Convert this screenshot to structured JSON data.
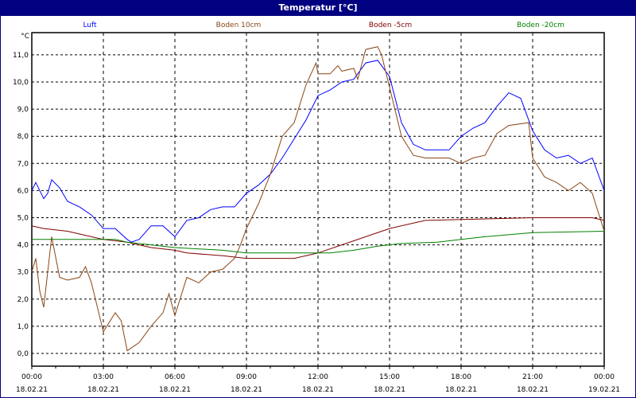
{
  "chart_data": {
    "type": "line",
    "title": "Temperatur [°C]",
    "ylabel": "°C",
    "ylim": [
      -0.7,
      11.6
    ],
    "yticks": [
      "0,0",
      "1,0",
      "2,0",
      "3,0",
      "4,0",
      "5,0",
      "6,0",
      "7,0",
      "8,0",
      "9,0",
      "10,0",
      "11,0"
    ],
    "xlim": [
      "18.02.21 00:00",
      "19.02.21 00:00"
    ],
    "xticks": [
      {
        "time": "00:00",
        "date": "18.02.21"
      },
      {
        "time": "03:00",
        "date": "18.02.21"
      },
      {
        "time": "06:00",
        "date": "18.02.21"
      },
      {
        "time": "09:00",
        "date": "18.02.21"
      },
      {
        "time": "12:00",
        "date": "18.02.21"
      },
      {
        "time": "15:00",
        "date": "18.02.21"
      },
      {
        "time": "18:00",
        "date": "18.02.21"
      },
      {
        "time": "21:00",
        "date": "18.02.21"
      },
      {
        "time": "00:00",
        "date": "19.02.21"
      }
    ],
    "grid": true,
    "legend_position": "top",
    "series": [
      {
        "name": "Luft",
        "color": "#0000ff",
        "points": [
          [
            "18.02.21 00:00",
            6.0
          ],
          [
            "18.02.21 00:10",
            6.3
          ],
          [
            "18.02.21 00:30",
            5.7
          ],
          [
            "18.02.21 00:40",
            5.9
          ],
          [
            "18.02.21 00:50",
            6.4
          ],
          [
            "18.02.21 01:10",
            6.1
          ],
          [
            "18.02.21 01:30",
            5.6
          ],
          [
            "18.02.21 02:00",
            5.4
          ],
          [
            "18.02.21 02:30",
            5.1
          ],
          [
            "18.02.21 03:00",
            4.6
          ],
          [
            "18.02.21 03:30",
            4.6
          ],
          [
            "18.02.21 04:00",
            4.2
          ],
          [
            "18.02.21 04:10",
            4.1
          ],
          [
            "18.02.21 04:30",
            4.2
          ],
          [
            "18.02.21 05:00",
            4.7
          ],
          [
            "18.02.21 05:30",
            4.7
          ],
          [
            "18.02.21 06:00",
            4.3
          ],
          [
            "18.02.21 06:30",
            4.9
          ],
          [
            "18.02.21 07:00",
            5.0
          ],
          [
            "18.02.21 07:30",
            5.3
          ],
          [
            "18.02.21 08:00",
            5.4
          ],
          [
            "18.02.21 08:30",
            5.4
          ],
          [
            "18.02.21 09:00",
            5.9
          ],
          [
            "18.02.21 09:30",
            6.2
          ],
          [
            "18.02.21 10:00",
            6.6
          ],
          [
            "18.02.21 10:30",
            7.2
          ],
          [
            "18.02.21 11:00",
            7.9
          ],
          [
            "18.02.21 11:30",
            8.6
          ],
          [
            "18.02.21 12:00",
            9.5
          ],
          [
            "18.02.21 12:30",
            9.7
          ],
          [
            "18.02.21 13:00",
            10.0
          ],
          [
            "18.02.21 13:30",
            10.1
          ],
          [
            "18.02.21 14:00",
            10.7
          ],
          [
            "18.02.21 14:30",
            10.8
          ],
          [
            "18.02.21 15:00",
            10.2
          ],
          [
            "18.02.21 15:30",
            8.5
          ],
          [
            "18.02.21 16:00",
            7.7
          ],
          [
            "18.02.21 16:30",
            7.5
          ],
          [
            "18.02.21 17:00",
            7.5
          ],
          [
            "18.02.21 17:30",
            7.5
          ],
          [
            "18.02.21 18:00",
            8.0
          ],
          [
            "18.02.21 18:30",
            8.3
          ],
          [
            "18.02.21 19:00",
            8.5
          ],
          [
            "18.02.21 19:30",
            9.1
          ],
          [
            "18.02.21 20:00",
            9.6
          ],
          [
            "18.02.21 20:30",
            9.4
          ],
          [
            "18.02.21 21:00",
            8.2
          ],
          [
            "18.02.21 21:30",
            7.5
          ],
          [
            "18.02.21 22:00",
            7.2
          ],
          [
            "18.02.21 22:30",
            7.3
          ],
          [
            "18.02.21 23:00",
            7.0
          ],
          [
            "18.02.21 23:30",
            7.2
          ],
          [
            "19.02.21 00:00",
            6.0
          ]
        ]
      },
      {
        "name": "Boden 10cm",
        "color": "#8b4513",
        "points": [
          [
            "18.02.21 00:00",
            3.0
          ],
          [
            "18.02.21 00:10",
            3.5
          ],
          [
            "18.02.21 00:20",
            2.3
          ],
          [
            "18.02.21 00:30",
            1.7
          ],
          [
            "18.02.21 00:50",
            4.3
          ],
          [
            "18.02.21 01:10",
            2.8
          ],
          [
            "18.02.21 01:30",
            2.7
          ],
          [
            "18.02.21 02:00",
            2.8
          ],
          [
            "18.02.21 02:15",
            3.2
          ],
          [
            "18.02.21 02:30",
            2.6
          ],
          [
            "18.02.21 03:00",
            0.8
          ],
          [
            "18.02.21 03:30",
            1.5
          ],
          [
            "18.02.21 03:45",
            1.2
          ],
          [
            "18.02.21 04:00",
            0.1
          ],
          [
            "18.02.21 04:30",
            0.4
          ],
          [
            "18.02.21 05:00",
            1.0
          ],
          [
            "18.02.21 05:30",
            1.5
          ],
          [
            "18.02.21 05:45",
            2.2
          ],
          [
            "18.02.21 06:00",
            1.4
          ],
          [
            "18.02.21 06:30",
            2.8
          ],
          [
            "18.02.21 07:00",
            2.6
          ],
          [
            "18.02.21 07:30",
            3.0
          ],
          [
            "18.02.21 08:00",
            3.1
          ],
          [
            "18.02.21 08:30",
            3.5
          ],
          [
            "18.02.21 08:45",
            4.0
          ],
          [
            "18.02.21 09:00",
            4.6
          ],
          [
            "18.02.21 09:30",
            5.5
          ],
          [
            "18.02.21 10:00",
            6.6
          ],
          [
            "18.02.21 10:30",
            8.0
          ],
          [
            "18.02.21 11:00",
            8.5
          ],
          [
            "18.02.21 11:30",
            9.9
          ],
          [
            "18.02.21 11:55",
            10.7
          ],
          [
            "18.02.21 12:00",
            10.3
          ],
          [
            "18.02.21 12:30",
            10.3
          ],
          [
            "18.02.21 12:50",
            10.6
          ],
          [
            "18.02.21 13:00",
            10.4
          ],
          [
            "18.02.21 13:30",
            10.5
          ],
          [
            "18.02.21 13:40",
            10.1
          ],
          [
            "18.02.21 14:00",
            11.2
          ],
          [
            "18.02.21 14:30",
            11.3
          ],
          [
            "18.02.21 14:40",
            11.0
          ],
          [
            "18.02.21 15:00",
            9.8
          ],
          [
            "18.02.21 15:30",
            8.0
          ],
          [
            "18.02.21 16:00",
            7.3
          ],
          [
            "18.02.21 16:30",
            7.2
          ],
          [
            "18.02.21 17:00",
            7.2
          ],
          [
            "18.02.21 17:30",
            7.2
          ],
          [
            "18.02.21 18:00",
            7.0
          ],
          [
            "18.02.21 18:30",
            7.2
          ],
          [
            "18.02.21 19:00",
            7.3
          ],
          [
            "18.02.21 19:30",
            8.1
          ],
          [
            "18.02.21 20:00",
            8.4
          ],
          [
            "18.02.21 20:50",
            8.5
          ],
          [
            "18.02.21 21:00",
            7.2
          ],
          [
            "18.02.21 21:30",
            6.5
          ],
          [
            "18.02.21 22:00",
            6.3
          ],
          [
            "18.02.21 22:30",
            6.0
          ],
          [
            "18.02.21 23:00",
            6.3
          ],
          [
            "18.02.21 23:30",
            5.9
          ],
          [
            "19.02.21 00:00",
            4.5
          ]
        ]
      },
      {
        "name": "Boden -5cm",
        "color": "#800000",
        "points": [
          [
            "18.02.21 00:00",
            4.7
          ],
          [
            "18.02.21 00:30",
            4.6
          ],
          [
            "18.02.21 01:30",
            4.5
          ],
          [
            "18.02.21 02:30",
            4.3
          ],
          [
            "18.02.21 03:00",
            4.2
          ],
          [
            "18.02.21 04:00",
            4.1
          ],
          [
            "18.02.21 05:00",
            3.9
          ],
          [
            "18.02.21 06:00",
            3.8
          ],
          [
            "18.02.21 06:30",
            3.7
          ],
          [
            "18.02.21 08:00",
            3.6
          ],
          [
            "18.02.21 09:00",
            3.5
          ],
          [
            "18.02.21 11:00",
            3.5
          ],
          [
            "18.02.21 11:30",
            3.6
          ],
          [
            "18.02.21 12:00",
            3.7
          ],
          [
            "18.02.21 13:00",
            4.0
          ],
          [
            "18.02.21 14:00",
            4.3
          ],
          [
            "18.02.21 15:00",
            4.6
          ],
          [
            "18.02.21 16:00",
            4.8
          ],
          [
            "18.02.21 16:30",
            4.9
          ],
          [
            "18.02.21 21:00",
            5.0
          ],
          [
            "18.02.21 23:30",
            5.0
          ],
          [
            "19.02.21 00:00",
            4.9
          ]
        ]
      },
      {
        "name": "Boden -20cm",
        "color": "#008000",
        "points": [
          [
            "18.02.21 00:00",
            4.2
          ],
          [
            "18.02.21 03:30",
            4.2
          ],
          [
            "18.02.21 04:00",
            4.1
          ],
          [
            "18.02.21 05:00",
            4.0
          ],
          [
            "18.02.21 06:00",
            3.9
          ],
          [
            "18.02.21 07:00",
            3.85
          ],
          [
            "18.02.21 08:00",
            3.8
          ],
          [
            "18.02.21 09:00",
            3.7
          ],
          [
            "18.02.21 12:30",
            3.7
          ],
          [
            "18.02.21 13:30",
            3.8
          ],
          [
            "18.02.21 14:30",
            3.95
          ],
          [
            "18.02.21 15:30",
            4.05
          ],
          [
            "18.02.21 17:00",
            4.1
          ],
          [
            "18.02.21 18:00",
            4.2
          ],
          [
            "18.02.21 19:00",
            4.3
          ],
          [
            "18.02.21 21:00",
            4.45
          ],
          [
            "19.02.21 00:00",
            4.5
          ]
        ]
      }
    ]
  }
}
